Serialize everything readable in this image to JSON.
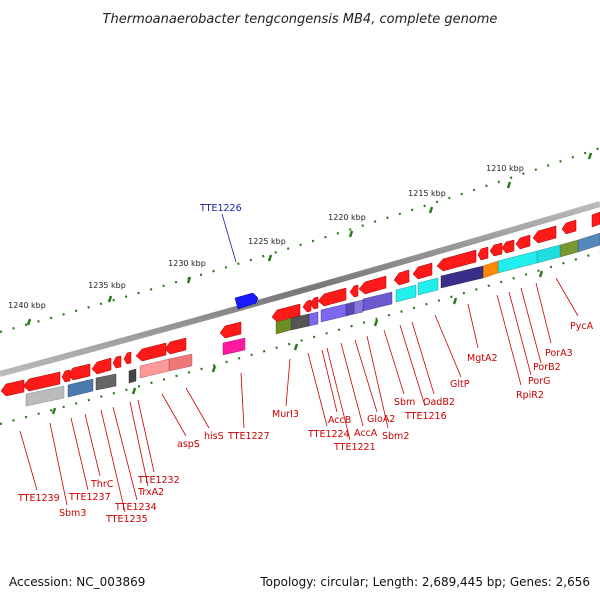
{
  "title": "Thermoanaerobacter tengcongensis MB4, complete genome",
  "footer": {
    "accession": "Accession: NC_003869",
    "summary": "Topology: circular; Length: 2,689,445 bp; Genes: 2,656"
  },
  "scale_labels": [
    "1210 kbp",
    "1215 kbp",
    "1220 kbp",
    "1225 kbp",
    "1230 kbp",
    "1235 kbp",
    "1240 kbp"
  ],
  "gene_labels": [
    "PycA",
    "PorA3",
    "PorB2",
    "PorG",
    "RpiR2",
    "MgtA2",
    "GltP",
    "OadB2",
    "TTE1216",
    "Sbm",
    "Sbm2",
    "GloA2",
    "AccA",
    "TTE1221",
    "AccB",
    "TTE1224",
    "MurI3",
    "TTE1227",
    "hisS",
    "aspS",
    "TTE1232",
    "TrxA2",
    "TTE1234",
    "TTE1235",
    "ThrC",
    "TTE1237",
    "Sbm3",
    "TTE1239",
    "TTE1226"
  ],
  "colors": {
    "gene_red": "#ff1a1a",
    "label_red": "#cc0000",
    "label_blue": "#1a1aaa",
    "tick_green": "#2a7a1a",
    "backbone": "#888888"
  }
}
